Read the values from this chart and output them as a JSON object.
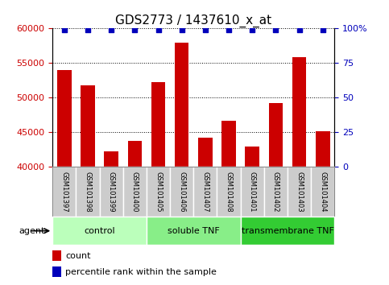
{
  "title": "GDS2773 / 1437610_x_at",
  "samples": [
    "GSM101397",
    "GSM101398",
    "GSM101399",
    "GSM101400",
    "GSM101405",
    "GSM101406",
    "GSM101407",
    "GSM101408",
    "GSM101401",
    "GSM101402",
    "GSM101403",
    "GSM101404"
  ],
  "counts": [
    54000,
    51800,
    42200,
    43700,
    52300,
    58000,
    44200,
    46600,
    42900,
    49200,
    55800,
    45100
  ],
  "percentile_ranks": [
    99,
    99,
    99,
    99,
    99,
    99,
    99,
    99,
    99,
    99,
    99,
    99
  ],
  "ylim_left": [
    40000,
    60000
  ],
  "ylim_right": [
    0,
    100
  ],
  "yticks_left": [
    40000,
    45000,
    50000,
    55000,
    60000
  ],
  "yticks_right": [
    0,
    25,
    50,
    75,
    100
  ],
  "yticklabels_right": [
    "0",
    "25",
    "50",
    "75",
    "100%"
  ],
  "bar_color": "#cc0000",
  "dot_color": "#0000bb",
  "groups": [
    {
      "label": "control",
      "start": 0,
      "end": 4
    },
    {
      "label": "soluble TNF",
      "start": 4,
      "end": 8
    },
    {
      "label": "transmembrane TNF",
      "start": 8,
      "end": 12
    }
  ],
  "group_colors": [
    "#bbffbb",
    "#88ee88",
    "#33cc33"
  ],
  "agent_label": "agent",
  "legend_count_color": "#cc0000",
  "legend_pct_color": "#0000bb",
  "legend_count_label": "count",
  "legend_pct_label": "percentile rank within the sample",
  "title_fontsize": 11,
  "bar_width": 0.6,
  "sample_box_color": "#cccccc",
  "sample_box_edge": "#aaaaaa"
}
